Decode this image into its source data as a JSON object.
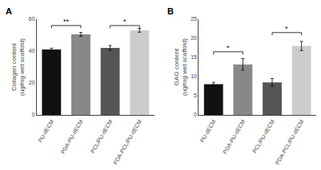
{
  "chart_data": [
    {
      "type": "bar",
      "title": "A",
      "ylabel": "Collagen content\n(ug/mg wet scaffold)",
      "categories": [
        "PU-dECM",
        "PDA-PU-dECM",
        "PCL/PU-dECM",
        "PDA-PCL/PU-dECM"
      ],
      "values": [
        41.0,
        50.5,
        42.0,
        53.0
      ],
      "errors": [
        0.8,
        1.2,
        1.5,
        1.2
      ],
      "colors": [
        "#111111",
        "#888888",
        "#555555",
        "#cccccc"
      ],
      "ylim": [
        0,
        60
      ],
      "yticks": [
        0,
        20,
        40,
        60
      ],
      "grid": false,
      "annotations": [
        {
          "text": "**",
          "x1": "PU-dECM",
          "x2": "PDA-PU-dECM",
          "y": 56
        },
        {
          "text": "*",
          "x1": "PCL/PU-dECM",
          "x2": "PDA-PCL/PU-dECM",
          "y": 56
        }
      ]
    },
    {
      "type": "bar",
      "title": "B",
      "ylabel": "GAG content\n(ug/mg wet scaffold)",
      "categories": [
        "PU-dECM",
        "PDA-PU-dECM",
        "PCL/PU-dECM",
        "PDA-PCL/PU-dECM"
      ],
      "values": [
        8.0,
        13.2,
        8.5,
        18.0
      ],
      "errors": [
        0.5,
        1.5,
        1.0,
        1.2
      ],
      "colors": [
        "#111111",
        "#888888",
        "#555555",
        "#cccccc"
      ],
      "ylim": [
        0,
        25
      ],
      "yticks": [
        0,
        5,
        10,
        15,
        20,
        25
      ],
      "grid": false,
      "annotations": [
        {
          "text": "*",
          "x1": "PU-dECM",
          "x2": "PDA-PU-dECM",
          "y": 16.5
        },
        {
          "text": "*",
          "x1": "PCL/PU-dECM",
          "x2": "PDA-PCL/PU-dECM",
          "y": 21.5
        }
      ]
    }
  ]
}
